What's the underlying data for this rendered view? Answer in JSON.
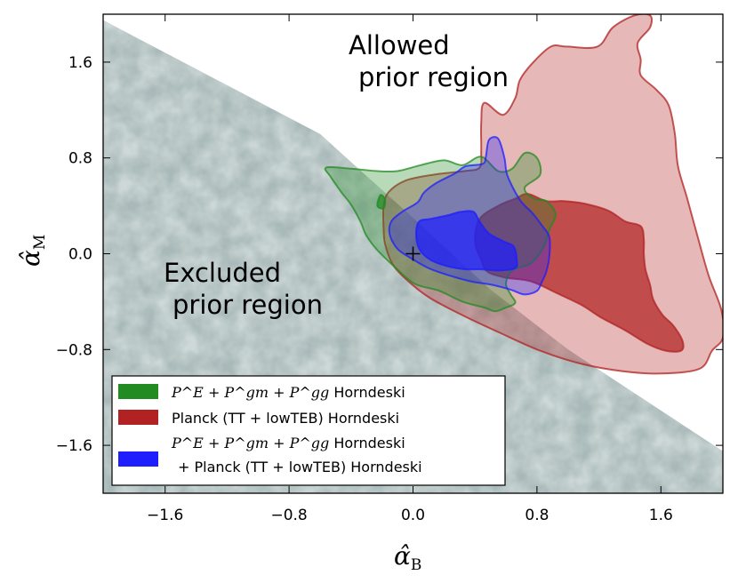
{
  "chart_data": {
    "type": "contour",
    "xlabel": "α̂",
    "xlabel_sub": "B",
    "ylabel": "α̂",
    "ylabel_sub": "M",
    "xlim": [
      -2.0,
      2.0
    ],
    "ylim": [
      -2.0,
      2.0
    ],
    "xticks": [
      -1.6,
      -0.8,
      0.0,
      0.8,
      1.6
    ],
    "xtick_labels": [
      "−1.6",
      "−0.8",
      "0.0",
      "0.8",
      "1.6"
    ],
    "yticks": [
      -1.6,
      -0.8,
      0.0,
      0.8,
      1.6
    ],
    "ytick_labels": [
      "−1.6",
      "−0.8",
      "0.0",
      "0.8",
      "1.6"
    ],
    "grid": false,
    "annotations": {
      "allowed_line1": "Allowed",
      "allowed_line2": "prior region",
      "excluded_line1": "Excluded",
      "excluded_line2": "prior region"
    },
    "fiducial_marker": {
      "x": 0.0,
      "y": 0.0,
      "symbol": "+"
    },
    "excluded_region_boundary": [
      [
        -2.0,
        1.95
      ],
      [
        -0.6,
        1.0
      ],
      [
        0.0,
        0.3
      ],
      [
        0.5,
        -0.3
      ],
      [
        1.0,
        -0.8
      ],
      [
        2.0,
        -1.65
      ]
    ],
    "legend": {
      "position": "lower-left",
      "entries": [
        {
          "label_main": "P^E + P^gm + P^gg",
          "label_tail": "Horndeski",
          "color": "#228B22"
        },
        {
          "label_main": "Planck (TT + lowTEB) Horndeski",
          "label_tail": "",
          "color": "#B22222"
        },
        {
          "label_main": "P^E + P^gm + P^gg",
          "label_tail": "Horndeski",
          "label_line2": "+ Planck (TT + lowTEB) Horndeski",
          "color": "#1E1EFF"
        }
      ]
    },
    "series": [
      {
        "name": "Planck (TT + lowTEB) Horndeski",
        "color": "#B22222",
        "contours": [
          {
            "level": "95%",
            "points": [
              [
                0.46,
                1.26
              ],
              [
                0.58,
                1.16
              ],
              [
                0.66,
                1.3
              ],
              [
                0.69,
                1.45
              ],
              [
                0.77,
                1.59
              ],
              [
                0.89,
                1.73
              ],
              [
                0.99,
                1.73
              ],
              [
                1.19,
                1.73
              ],
              [
                1.29,
                1.89
              ],
              [
                1.43,
                1.99
              ],
              [
                1.53,
                1.99
              ],
              [
                1.53,
                1.89
              ],
              [
                1.45,
                1.76
              ],
              [
                1.47,
                1.62
              ],
              [
                1.47,
                1.49
              ],
              [
                1.57,
                1.37
              ],
              [
                1.65,
                1.24
              ],
              [
                1.69,
                1.0
              ],
              [
                1.71,
                0.73
              ],
              [
                1.77,
                0.46
              ],
              [
                1.85,
                0.08
              ],
              [
                1.91,
                -0.19
              ],
              [
                1.99,
                -0.47
              ],
              [
                2.0,
                -0.7
              ],
              [
                1.93,
                -0.81
              ],
              [
                1.85,
                -0.96
              ],
              [
                1.6,
                -1.0
              ],
              [
                1.35,
                -0.98
              ],
              [
                1.09,
                -0.92
              ],
              [
                0.82,
                -0.81
              ],
              [
                0.56,
                -0.66
              ],
              [
                0.33,
                -0.52
              ],
              [
                0.11,
                -0.37
              ],
              [
                -0.03,
                -0.23
              ],
              [
                -0.13,
                -0.09
              ],
              [
                -0.18,
                0.08
              ],
              [
                -0.19,
                0.22
              ],
              [
                -0.19,
                0.39
              ],
              [
                -0.16,
                0.51
              ],
              [
                -0.05,
                0.61
              ],
              [
                0.13,
                0.66
              ],
              [
                0.33,
                0.69
              ],
              [
                0.43,
                0.72
              ],
              [
                0.44,
                0.86
              ],
              [
                0.44,
                1.09
              ]
            ]
          },
          {
            "level": "68%",
            "points": [
              [
                0.66,
                0.46
              ],
              [
                0.74,
                0.5
              ],
              [
                0.86,
                0.44
              ],
              [
                0.97,
                0.44
              ],
              [
                1.1,
                0.42
              ],
              [
                1.26,
                0.36
              ],
              [
                1.37,
                0.27
              ],
              [
                1.47,
                0.23
              ],
              [
                1.49,
                0.12
              ],
              [
                1.49,
                0.0
              ],
              [
                1.5,
                -0.13
              ],
              [
                1.53,
                -0.26
              ],
              [
                1.55,
                -0.38
              ],
              [
                1.61,
                -0.51
              ],
              [
                1.68,
                -0.6
              ],
              [
                1.74,
                -0.73
              ],
              [
                1.73,
                -0.81
              ],
              [
                1.63,
                -0.81
              ],
              [
                1.51,
                -0.75
              ],
              [
                1.37,
                -0.64
              ],
              [
                1.21,
                -0.53
              ],
              [
                1.09,
                -0.43
              ],
              [
                0.93,
                -0.33
              ],
              [
                0.76,
                -0.23
              ],
              [
                0.6,
                -0.2
              ],
              [
                0.48,
                -0.15
              ],
              [
                0.44,
                -0.05
              ],
              [
                0.4,
                0.1
              ],
              [
                0.43,
                0.29
              ],
              [
                0.55,
                0.4
              ]
            ]
          }
        ]
      },
      {
        "name": "P^E + P^gm + P^gg Horndeski",
        "color": "#228B22",
        "contours": [
          {
            "level": "95%",
            "points": [
              [
                -0.56,
                0.72
              ],
              [
                -0.4,
                0.71
              ],
              [
                -0.23,
                0.69
              ],
              [
                -0.1,
                0.69
              ],
              [
                0.05,
                0.74
              ],
              [
                0.2,
                0.78
              ],
              [
                0.32,
                0.74
              ],
              [
                0.44,
                0.81
              ],
              [
                0.55,
                0.69
              ],
              [
                0.64,
                0.71
              ],
              [
                0.72,
                0.84
              ],
              [
                0.8,
                0.8
              ],
              [
                0.82,
                0.66
              ],
              [
                0.72,
                0.55
              ],
              [
                0.78,
                0.46
              ],
              [
                0.86,
                0.44
              ],
              [
                0.92,
                0.33
              ],
              [
                0.88,
                0.2
              ],
              [
                0.84,
                0.05
              ],
              [
                0.76,
                -0.08
              ],
              [
                0.64,
                -0.14
              ],
              [
                0.6,
                -0.25
              ],
              [
                0.63,
                -0.34
              ],
              [
                0.66,
                -0.41
              ],
              [
                0.6,
                -0.45
              ],
              [
                0.53,
                -0.48
              ],
              [
                0.46,
                -0.45
              ],
              [
                0.32,
                -0.4
              ],
              [
                0.17,
                -0.31
              ],
              [
                0.01,
                -0.25
              ],
              [
                -0.11,
                -0.12
              ],
              [
                -0.23,
                0.03
              ],
              [
                -0.3,
                0.15
              ],
              [
                -0.34,
                0.27
              ],
              [
                -0.4,
                0.41
              ],
              [
                -0.46,
                0.51
              ],
              [
                -0.53,
                0.64
              ]
            ]
          },
          {
            "level": "68%",
            "points": [
              [
                -0.23,
                0.4
              ],
              [
                -0.21,
                0.49
              ],
              [
                -0.18,
                0.45
              ],
              [
                -0.19,
                0.38
              ]
            ]
          }
        ]
      },
      {
        "name": "P^E + P^gm + P^gg Horndeski + Planck (TT + lowTEB) Horndeski",
        "color": "#1E1EFF",
        "contours": [
          {
            "level": "95%",
            "points": [
              [
                0.15,
                0.59
              ],
              [
                0.27,
                0.67
              ],
              [
                0.34,
                0.73
              ],
              [
                0.45,
                0.75
              ],
              [
                0.47,
                0.81
              ],
              [
                0.49,
                0.95
              ],
              [
                0.55,
                0.96
              ],
              [
                0.59,
                0.8
              ],
              [
                0.61,
                0.65
              ],
              [
                0.69,
                0.45
              ],
              [
                0.77,
                0.34
              ],
              [
                0.83,
                0.24
              ],
              [
                0.88,
                0.14
              ],
              [
                0.88,
                -0.02
              ],
              [
                0.86,
                -0.15
              ],
              [
                0.83,
                -0.24
              ],
              [
                0.8,
                -0.31
              ],
              [
                0.72,
                -0.34
              ],
              [
                0.63,
                -0.3
              ],
              [
                0.51,
                -0.26
              ],
              [
                0.37,
                -0.23
              ],
              [
                0.23,
                -0.18
              ],
              [
                0.1,
                -0.12
              ],
              [
                -0.01,
                -0.04
              ],
              [
                -0.1,
                0.04
              ],
              [
                -0.15,
                0.16
              ],
              [
                -0.14,
                0.27
              ],
              [
                -0.07,
                0.35
              ],
              [
                0.03,
                0.43
              ],
              [
                0.07,
                0.51
              ]
            ]
          },
          {
            "level": "68%",
            "points": [
              [
                0.02,
                0.17
              ],
              [
                0.04,
                0.27
              ],
              [
                0.11,
                0.29
              ],
              [
                0.22,
                0.32
              ],
              [
                0.31,
                0.35
              ],
              [
                0.39,
                0.35
              ],
              [
                0.43,
                0.27
              ],
              [
                0.49,
                0.17
              ],
              [
                0.59,
                0.1
              ],
              [
                0.65,
                0.06
              ],
              [
                0.67,
                -0.05
              ],
              [
                0.66,
                -0.12
              ],
              [
                0.56,
                -0.14
              ],
              [
                0.43,
                -0.13
              ],
              [
                0.33,
                -0.13
              ],
              [
                0.21,
                -0.1
              ],
              [
                0.11,
                -0.05
              ],
              [
                0.04,
                0.04
              ]
            ]
          }
        ]
      }
    ]
  }
}
